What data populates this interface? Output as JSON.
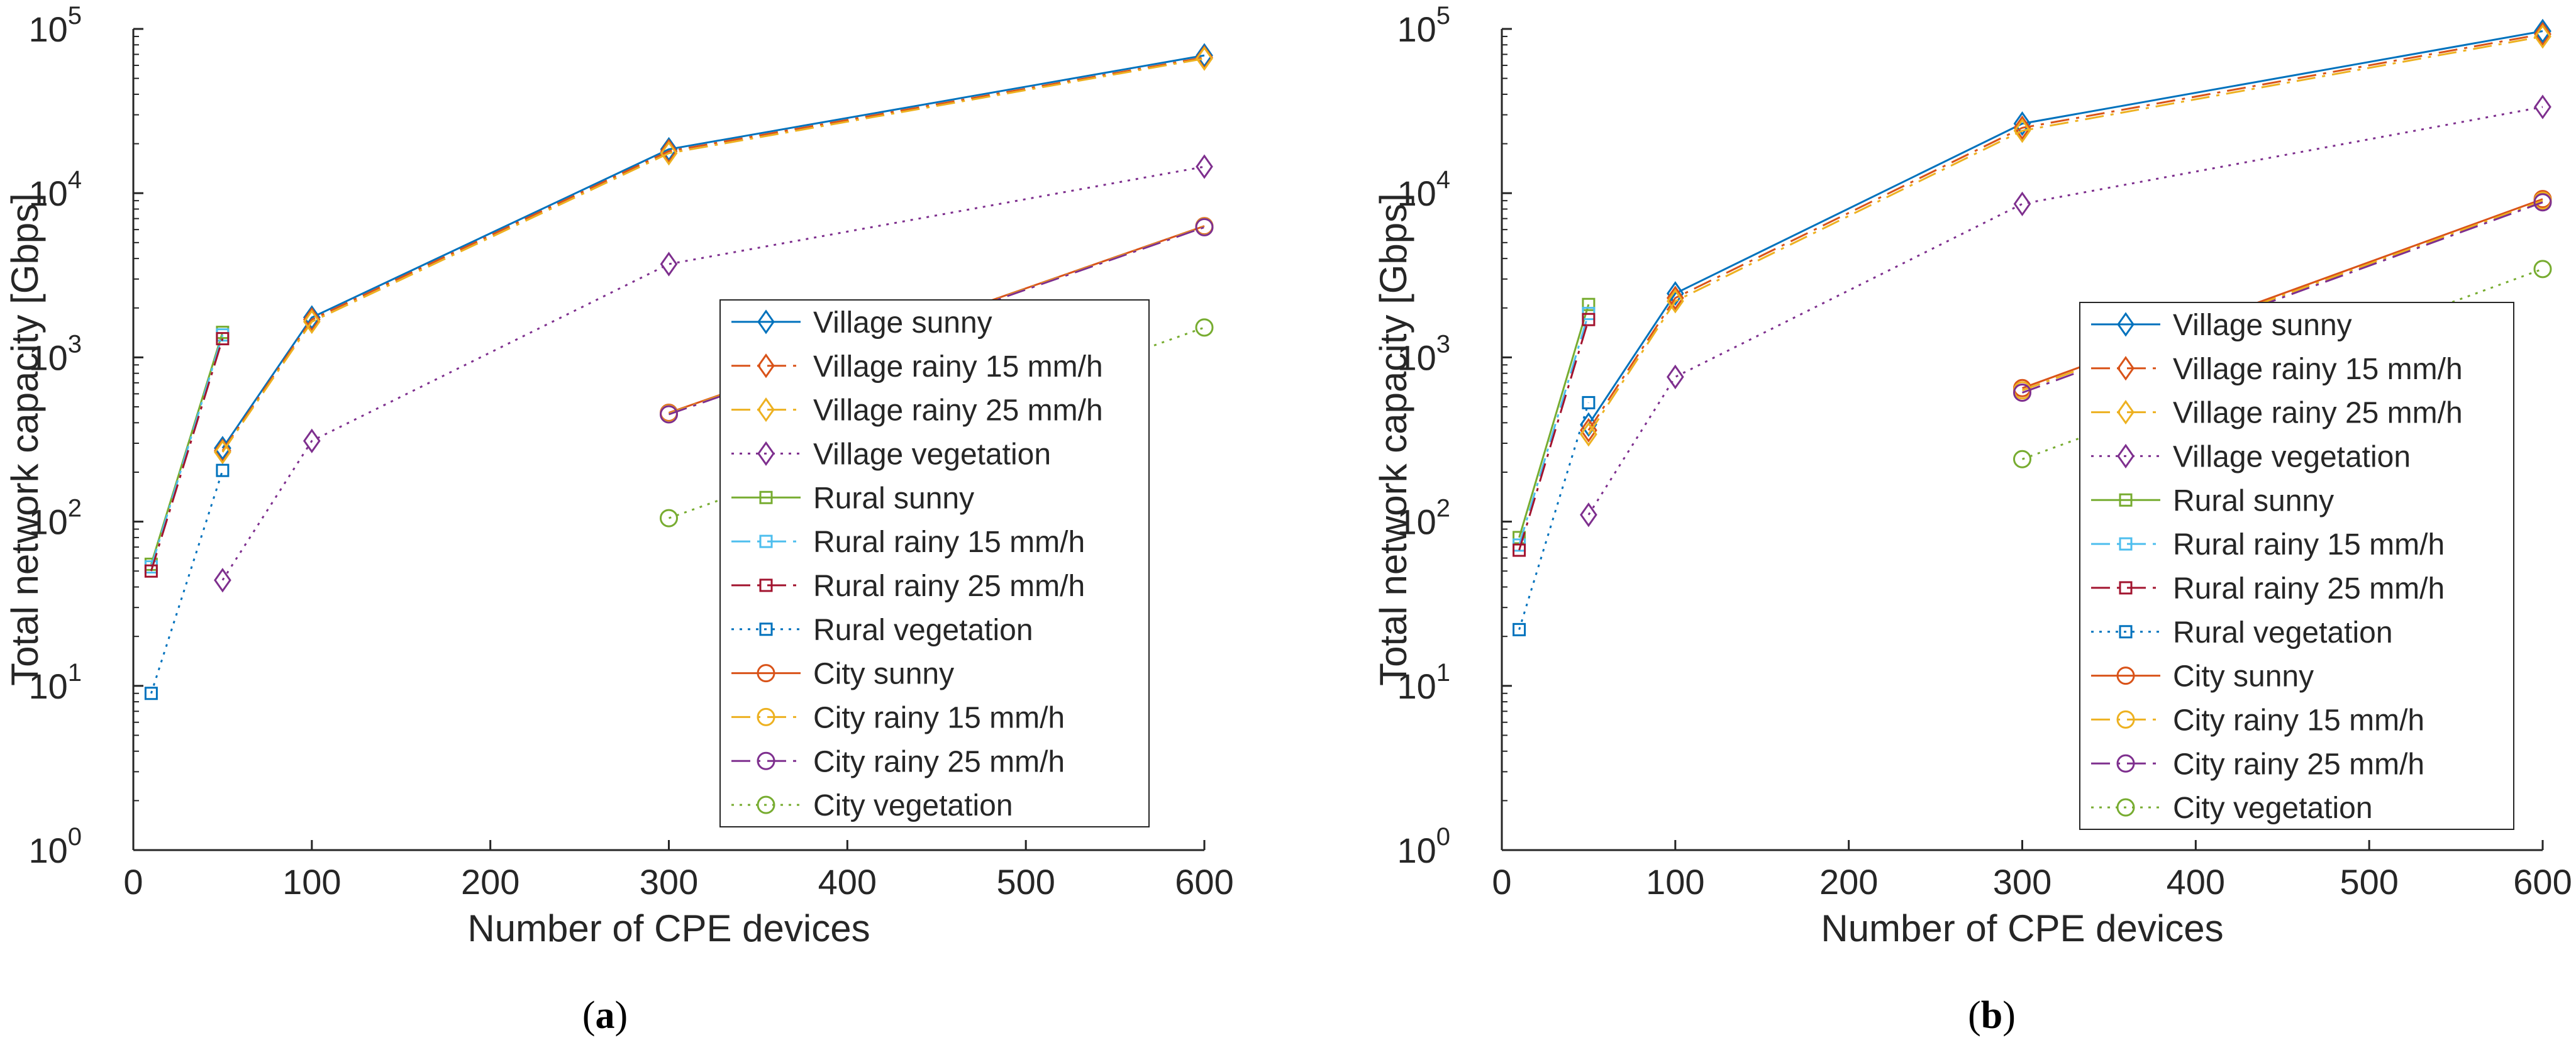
{
  "figure": {
    "caption_a": "a",
    "caption_b": "b"
  },
  "chart_data": [
    {
      "panel": "a",
      "type": "line",
      "xlabel": "Number of CPE devices",
      "ylabel": "Total network capacity [Gbps]",
      "xlim": [
        0,
        600
      ],
      "ylim": [
        1,
        100000
      ],
      "yscale": "log",
      "xticks": [
        0,
        100,
        200,
        300,
        400,
        500,
        600
      ],
      "ytick_exponents": [
        0,
        1,
        2,
        3,
        4,
        5
      ],
      "legend_position": "lower-right",
      "series": [
        {
          "name": "Village sunny",
          "color": "#0072BD",
          "style": "solid",
          "marker": "diamond",
          "x": [
            50,
            100,
            300,
            600
          ],
          "y": [
            280,
            1750,
            18500,
            69000
          ]
        },
        {
          "name": "Village rainy 15 mm/h",
          "color": "#D95319",
          "style": "dashdot",
          "marker": "diamond",
          "x": [
            50,
            100,
            300,
            600
          ],
          "y": [
            270,
            1700,
            18000,
            67000
          ]
        },
        {
          "name": "Village rainy 25 mm/h",
          "color": "#EDB120",
          "style": "dashdot",
          "marker": "diamond",
          "x": [
            50,
            100,
            300,
            600
          ],
          "y": [
            265,
            1650,
            17500,
            66000
          ]
        },
        {
          "name": "Village vegetation",
          "color": "#7E2F8E",
          "style": "dotted",
          "marker": "diamond",
          "x": [
            50,
            100,
            300,
            600
          ],
          "y": [
            44,
            310,
            3700,
            14500
          ]
        },
        {
          "name": "Rural sunny",
          "color": "#77AC30",
          "style": "solid",
          "marker": "square",
          "x": [
            10,
            50
          ],
          "y": [
            55,
            1420
          ]
        },
        {
          "name": "Rural rainy 15 mm/h",
          "color": "#4DBEEE",
          "style": "dashdot",
          "marker": "square",
          "x": [
            10,
            50
          ],
          "y": [
            53,
            1370
          ]
        },
        {
          "name": "Rural rainy 25 mm/h",
          "color": "#A2142F",
          "style": "dashdot",
          "marker": "square",
          "x": [
            10,
            50
          ],
          "y": [
            50,
            1300
          ]
        },
        {
          "name": "Rural vegetation",
          "color": "#0072BD",
          "style": "dotted",
          "marker": "square",
          "x": [
            10,
            50
          ],
          "y": [
            9,
            205
          ]
        },
        {
          "name": "City sunny",
          "color": "#D95319",
          "style": "solid",
          "marker": "circle",
          "x": [
            300,
            600
          ],
          "y": [
            460,
            6300
          ]
        },
        {
          "name": "City rainy 15 mm/h",
          "color": "#EDB120",
          "style": "dashdot",
          "marker": "circle",
          "x": [
            300,
            600
          ],
          "y": [
            455,
            6250
          ]
        },
        {
          "name": "City rainy 25 mm/h",
          "color": "#7E2F8E",
          "style": "dashdot",
          "marker": "circle",
          "x": [
            300,
            600
          ],
          "y": [
            450,
            6200
          ]
        },
        {
          "name": "City vegetation",
          "color": "#77AC30",
          "style": "dotted",
          "marker": "circle",
          "x": [
            300,
            600
          ],
          "y": [
            105,
            1520
          ]
        }
      ]
    },
    {
      "panel": "b",
      "type": "line",
      "xlabel": "Number of CPE devices",
      "ylabel": "Total network capacity [Gbps]",
      "xlim": [
        0,
        600
      ],
      "ylim": [
        1,
        100000
      ],
      "yscale": "log",
      "xticks": [
        0,
        100,
        200,
        300,
        400,
        500,
        600
      ],
      "ytick_exponents": [
        0,
        1,
        2,
        3,
        4,
        5
      ],
      "legend_position": "lower-right",
      "series": [
        {
          "name": "Village sunny",
          "color": "#0072BD",
          "style": "solid",
          "marker": "diamond",
          "x": [
            50,
            100,
            300,
            600
          ],
          "y": [
            390,
            2450,
            26500,
            97000
          ]
        },
        {
          "name": "Village rainy 15 mm/h",
          "color": "#D95319",
          "style": "dashdot",
          "marker": "diamond",
          "x": [
            50,
            100,
            300,
            600
          ],
          "y": [
            360,
            2300,
            25000,
            93000
          ]
        },
        {
          "name": "Village rainy 25 mm/h",
          "color": "#EDB120",
          "style": "dashdot",
          "marker": "diamond",
          "x": [
            50,
            100,
            300,
            600
          ],
          "y": [
            340,
            2200,
            24000,
            90000
          ]
        },
        {
          "name": "Village vegetation",
          "color": "#7E2F8E",
          "style": "dotted",
          "marker": "diamond",
          "x": [
            50,
            100,
            300,
            600
          ],
          "y": [
            110,
            760,
            8600,
            33500
          ]
        },
        {
          "name": "Rural sunny",
          "color": "#77AC30",
          "style": "solid",
          "marker": "square",
          "x": [
            10,
            50
          ],
          "y": [
            80,
            2100
          ]
        },
        {
          "name": "Rural rainy 15 mm/h",
          "color": "#4DBEEE",
          "style": "dashdot",
          "marker": "square",
          "x": [
            10,
            50
          ],
          "y": [
            72,
            1850
          ]
        },
        {
          "name": "Rural rainy 25 mm/h",
          "color": "#A2142F",
          "style": "dashdot",
          "marker": "square",
          "x": [
            10,
            50
          ],
          "y": [
            67,
            1700
          ]
        },
        {
          "name": "Rural vegetation",
          "color": "#0072BD",
          "style": "dotted",
          "marker": "square",
          "x": [
            10,
            50
          ],
          "y": [
            22,
            530
          ]
        },
        {
          "name": "City  sunny",
          "color": "#D95319",
          "style": "solid",
          "marker": "circle",
          "x": [
            300,
            600
          ],
          "y": [
            650,
            9200
          ]
        },
        {
          "name": "City rainy 15 mm/h",
          "color": "#EDB120",
          "style": "dashdot",
          "marker": "circle",
          "x": [
            300,
            600
          ],
          "y": [
            630,
            9000
          ]
        },
        {
          "name": "City rainy 25 mm/h",
          "color": "#7E2F8E",
          "style": "dashdot",
          "marker": "circle",
          "x": [
            300,
            600
          ],
          "y": [
            610,
            8800
          ]
        },
        {
          "name": "City vegetation",
          "color": "#77AC30",
          "style": "dotted",
          "marker": "circle",
          "x": [
            300,
            600
          ],
          "y": [
            240,
            3450
          ]
        }
      ]
    }
  ]
}
